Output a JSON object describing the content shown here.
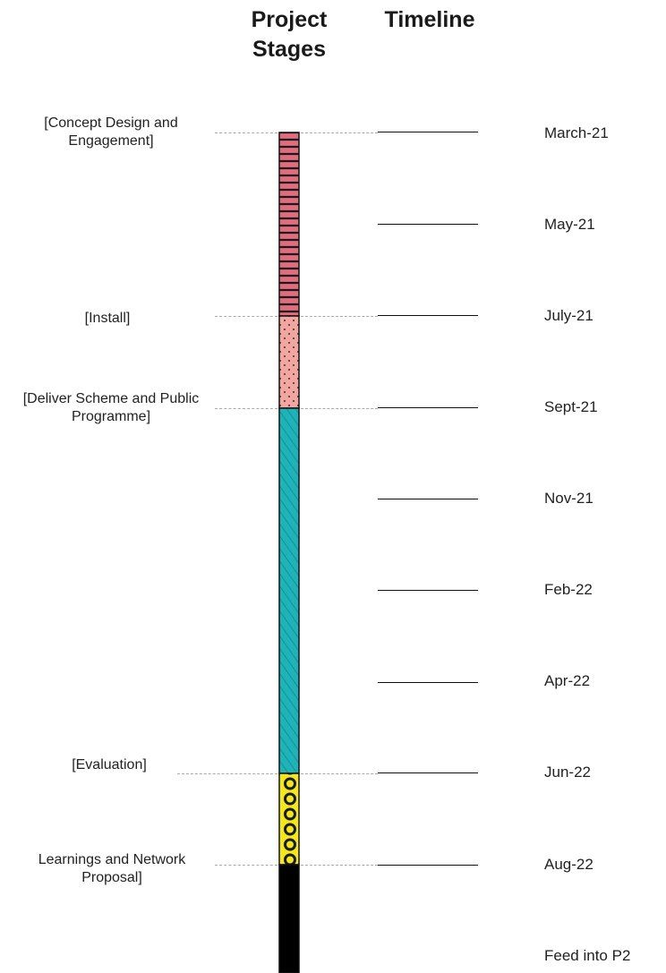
{
  "header": {
    "project_stages": "Project Stages",
    "timeline": "Timeline"
  },
  "stages": [
    {
      "label": "[Concept Design and Engagement]",
      "pattern": "horizontal-stripes",
      "color": "#e06c7e"
    },
    {
      "label": "[Install]",
      "pattern": "dots",
      "color": "#f3a6a0"
    },
    {
      "label": "[Deliver Scheme and Public Programme]",
      "pattern": "diagonal-hatch",
      "color": "#1eb3b8"
    },
    {
      "label": "[Evaluation]",
      "pattern": "circles",
      "color": "#f2e61c"
    },
    {
      "label": "Learnings and Network Proposal]",
      "pattern": "solid",
      "color": "#000000"
    }
  ],
  "timeline": [
    "March-21",
    "May-21",
    "July-21",
    "Sept-21",
    "Nov-21",
    "Feb-22",
    "Apr-22",
    "Jun-22",
    "Aug-22",
    "Feed into P2"
  ]
}
